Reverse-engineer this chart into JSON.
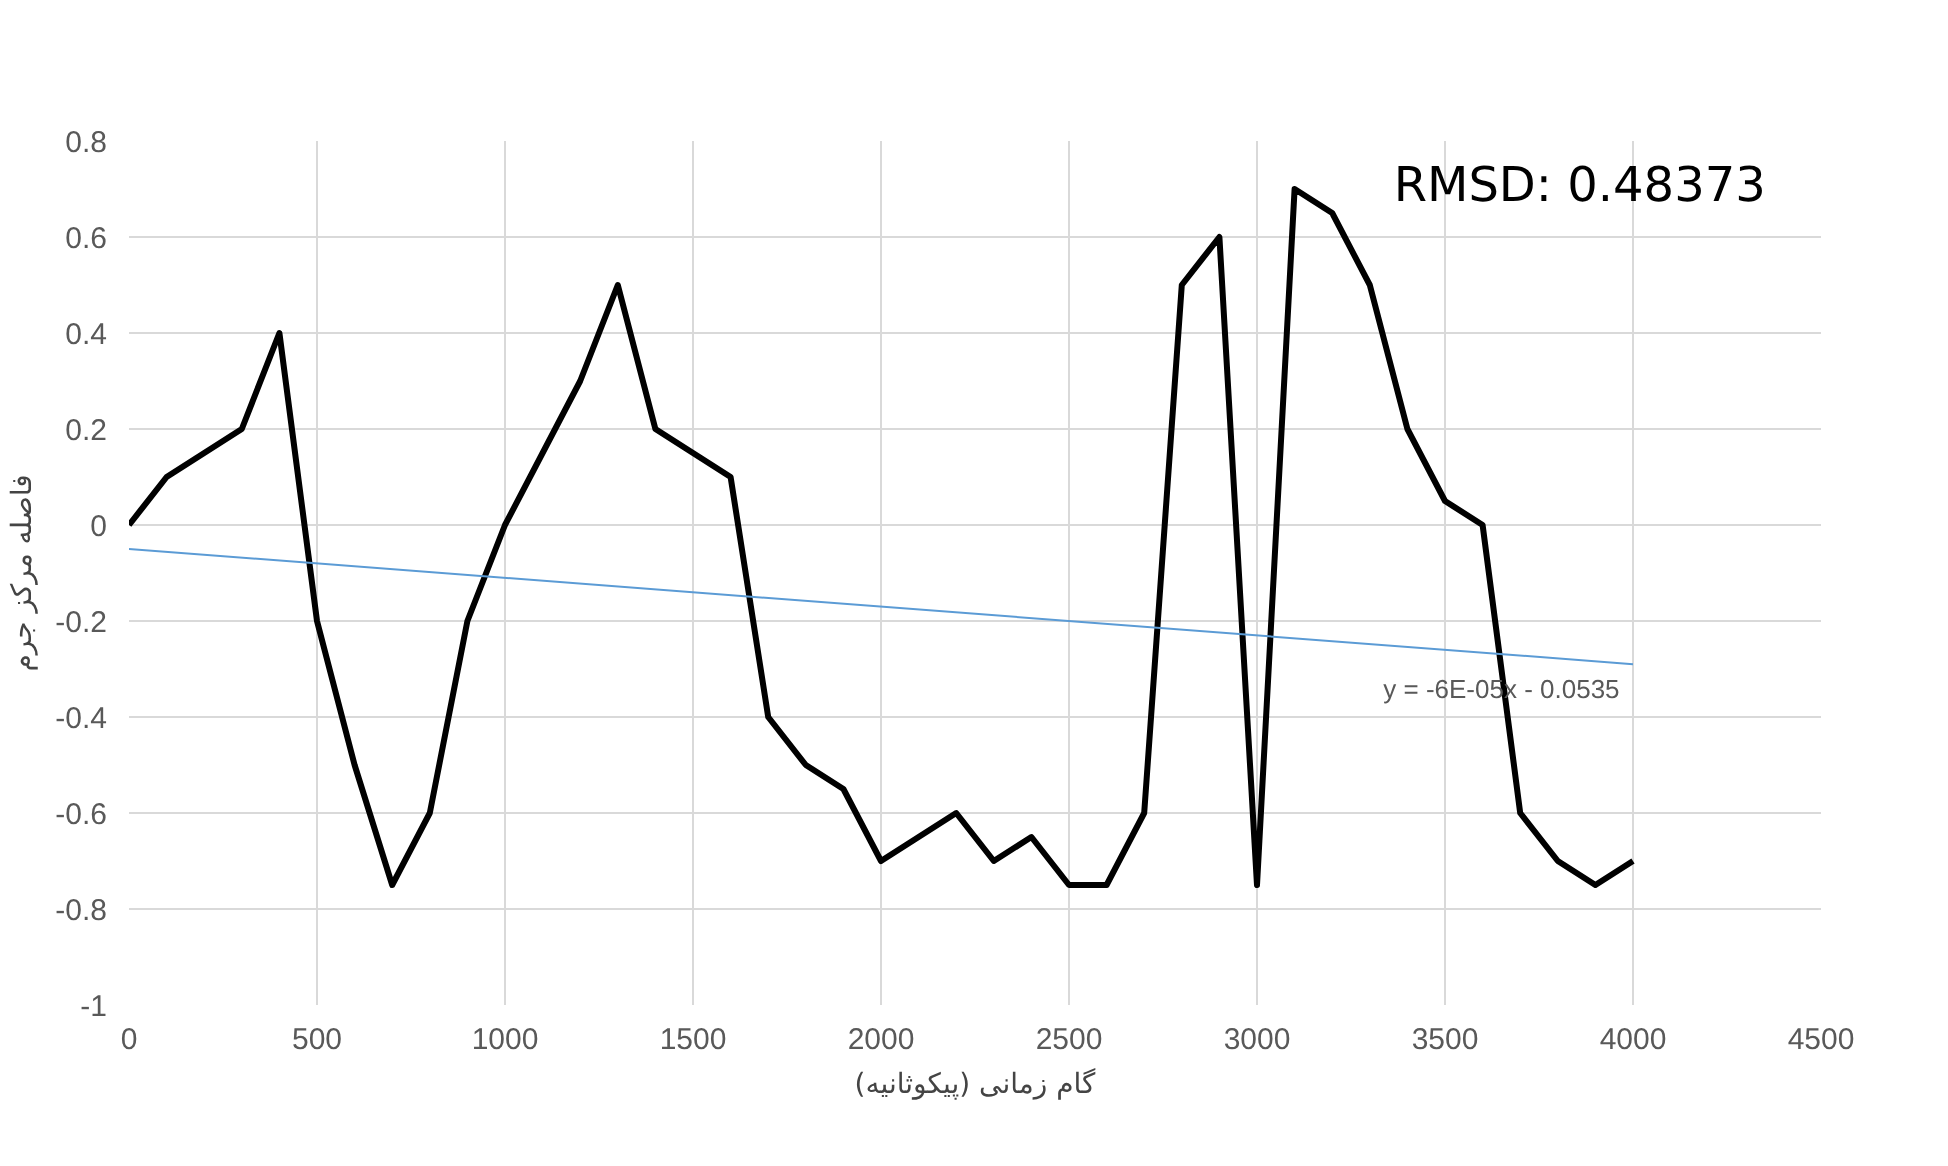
{
  "chart_data": {
    "type": "line",
    "xlabel": "گام زمانی (پیکوثانیه)",
    "ylabel": "فاصله مرکز جرم",
    "x": [
      0,
      100,
      200,
      300,
      400,
      500,
      600,
      700,
      800,
      900,
      1000,
      1100,
      1200,
      1300,
      1400,
      1500,
      1600,
      1700,
      1800,
      1900,
      2000,
      2100,
      2200,
      2300,
      2400,
      2500,
      2600,
      2700,
      2800,
      2900,
      3000,
      3100,
      3200,
      3300,
      3400,
      3500,
      3600,
      3700,
      3800,
      3900,
      4000
    ],
    "series": [
      {
        "color": "#000000",
        "values": [
          0,
          0.1,
          0.15,
          0.2,
          0.4,
          -0.2,
          -0.5,
          -0.75,
          -0.6,
          -0.2,
          0,
          0.15,
          0.3,
          0.5,
          0.2,
          0.15,
          0.1,
          -0.4,
          -0.5,
          -0.55,
          -0.7,
          -0.65,
          -0.6,
          -0.7,
          -0.65,
          -0.75,
          -0.75,
          -0.6,
          0.5,
          0.6,
          -0.75,
          0.7,
          0.65,
          0.5,
          0.2,
          0.05,
          0,
          -0.6,
          -0.7,
          -0.75,
          -0.7
        ]
      },
      {
        "type": "line",
        "color": "#5b9bd5",
        "x": [
          0,
          4000
        ],
        "values": [
          -0.05,
          -0.29
        ]
      }
    ],
    "annotations": [
      "RMSD:  0.48373",
      {
        "text": "y = -6E-05x - 0.0535",
        "x": 3650,
        "y": -0.31
      }
    ],
    "xlim": [
      0,
      4500
    ],
    "xticks": [
      0,
      500,
      1000,
      1500,
      2000,
      2500,
      3000,
      3500,
      4000,
      4500
    ],
    "ylim": [
      -1,
      0.8
    ],
    "yticks": [
      -1,
      -0.8,
      -0.6,
      -0.4,
      -0.2,
      0,
      0.2,
      0.4,
      0.6,
      0.8
    ],
    "grid": true,
    "marker": "none",
    "line_style": "solid"
  }
}
